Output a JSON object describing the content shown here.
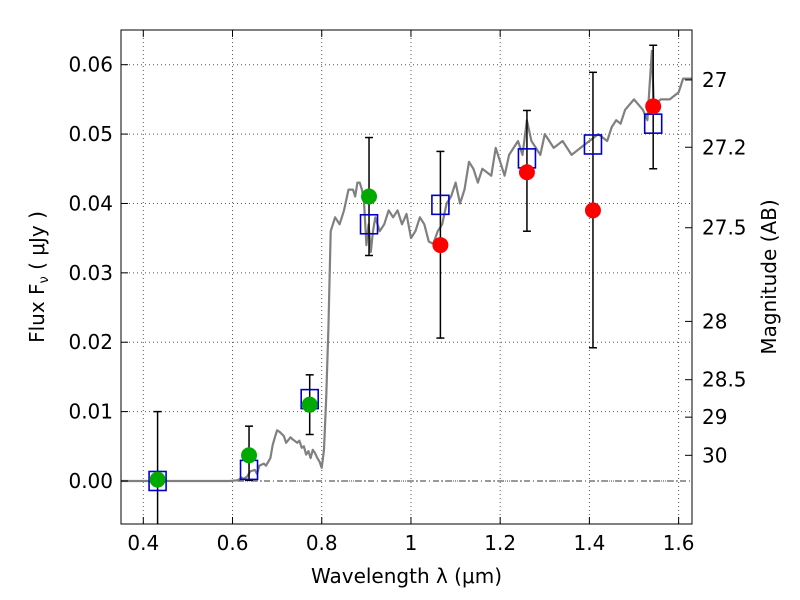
{
  "chart_data": {
    "type": "scatter",
    "xlabel": "Wavelength  λ (μm)",
    "ylabel": "Flux  F",
    "ylabel_sub": "ν",
    "ylabel_unit": " ( μJy )",
    "ylabel_right": "Magnitude (AB)",
    "xlim": [
      0.35,
      1.63
    ],
    "ylim": [
      -0.0062,
      0.065
    ],
    "grid": true,
    "x_ticks": [
      {
        "v": 0.4,
        "label": "0.4"
      },
      {
        "v": 0.6,
        "label": "0.6"
      },
      {
        "v": 0.8,
        "label": "0.8"
      },
      {
        "v": 1.0,
        "label": "1"
      },
      {
        "v": 1.2,
        "label": "1.2"
      },
      {
        "v": 1.4,
        "label": "1.4"
      },
      {
        "v": 1.6,
        "label": "1.6"
      }
    ],
    "y_ticks": [
      {
        "v": 0.0,
        "label": "0.00"
      },
      {
        "v": 0.01,
        "label": "0.01"
      },
      {
        "v": 0.02,
        "label": "0.02"
      },
      {
        "v": 0.03,
        "label": "0.03"
      },
      {
        "v": 0.04,
        "label": "0.04"
      },
      {
        "v": 0.05,
        "label": "0.05"
      },
      {
        "v": 0.06,
        "label": "0.06"
      }
    ],
    "right_ticks": [
      {
        "label": "27",
        "flux": 0.0578
      },
      {
        "label": "27.2",
        "flux": 0.0481
      },
      {
        "label": "27.5",
        "flux": 0.0365
      },
      {
        "label": "28",
        "flux": 0.023
      },
      {
        "label": "28.5",
        "flux": 0.0146
      },
      {
        "label": "29",
        "flux": 0.0092
      },
      {
        "label": "30",
        "flux": 0.0037
      }
    ],
    "colors": {
      "model": "#808080",
      "green": "#00aa00",
      "red": "#ff0000",
      "box": "#0000cc",
      "errorbar": "#000000",
      "grid": "#555555"
    },
    "series": [
      {
        "kind": "line",
        "x": [
          0.35,
          0.45,
          0.55,
          0.595,
          0.61,
          0.615,
          0.62,
          0.625,
          0.632,
          0.64,
          0.65,
          0.655,
          0.66,
          0.67,
          0.675,
          0.685,
          0.69,
          0.695,
          0.7,
          0.705,
          0.715,
          0.72,
          0.73,
          0.735,
          0.745,
          0.75,
          0.755,
          0.76,
          0.765,
          0.77,
          0.775,
          0.78,
          0.785,
          0.79,
          0.795,
          0.8,
          0.805,
          0.81,
          0.815,
          0.82,
          0.83,
          0.84,
          0.85,
          0.86,
          0.87,
          0.875,
          0.88,
          0.885,
          0.89,
          0.895,
          0.9,
          0.905,
          0.91,
          0.915,
          0.92,
          0.925,
          0.93,
          0.94,
          0.95,
          0.96,
          0.97,
          0.98,
          0.99,
          1.0,
          1.01,
          1.02,
          1.03,
          1.04,
          1.05,
          1.06,
          1.07,
          1.08,
          1.09,
          1.1,
          1.11,
          1.12,
          1.13,
          1.14,
          1.15,
          1.16,
          1.18,
          1.19,
          1.2,
          1.21,
          1.22,
          1.23,
          1.24,
          1.25,
          1.26,
          1.27,
          1.28,
          1.29,
          1.3,
          1.31,
          1.32,
          1.34,
          1.36,
          1.38,
          1.4,
          1.42,
          1.44,
          1.45,
          1.46,
          1.47,
          1.48,
          1.5,
          1.52,
          1.53,
          1.535,
          1.54,
          1.545,
          1.55,
          1.56,
          1.58,
          1.6,
          1.61,
          1.62,
          1.63
        ],
        "y": [
          0.0,
          0.0,
          0.0,
          0.0,
          0.0001,
          0.0002,
          0.0005,
          0.0003,
          0.0006,
          0.0014,
          0.0016,
          0.001,
          0.0022,
          0.0025,
          0.0022,
          0.0033,
          0.0052,
          0.0063,
          0.0073,
          0.0071,
          0.0065,
          0.0055,
          0.0063,
          0.006,
          0.0055,
          0.0058,
          0.0048,
          0.005,
          0.0038,
          0.0043,
          0.0033,
          0.0045,
          0.004,
          0.0033,
          0.0028,
          0.0019,
          0.0045,
          0.012,
          0.022,
          0.036,
          0.038,
          0.037,
          0.039,
          0.042,
          0.042,
          0.041,
          0.043,
          0.043,
          0.042,
          0.04,
          0.034,
          0.037,
          0.033,
          0.036,
          0.038,
          0.037,
          0.036,
          0.037,
          0.039,
          0.038,
          0.039,
          0.037,
          0.0385,
          0.035,
          0.036,
          0.038,
          0.037,
          0.0345,
          0.0342,
          0.036,
          0.037,
          0.04,
          0.041,
          0.043,
          0.04,
          0.042,
          0.046,
          0.045,
          0.043,
          0.045,
          0.044,
          0.048,
          0.046,
          0.044,
          0.047,
          0.048,
          0.049,
          0.047,
          0.052,
          0.049,
          0.048,
          0.047,
          0.05,
          0.049,
          0.048,
          0.049,
          0.047,
          0.048,
          0.049,
          0.05,
          0.049,
          0.051,
          0.052,
          0.0515,
          0.0535,
          0.055,
          0.0535,
          0.052,
          0.057,
          0.062,
          0.053,
          0.0545,
          0.055,
          0.055,
          0.056,
          0.058,
          0.058,
          0.058
        ]
      },
      {
        "kind": "points",
        "name": "green",
        "x": [
          0.432,
          0.637,
          0.773,
          0.906
        ],
        "y": [
          0.0002,
          0.0037,
          0.011,
          0.041
        ],
        "err_low": [
          0.0068,
          0.0036,
          0.0043,
          0.0085
        ],
        "err_high": [
          0.0098,
          0.0042,
          0.0043,
          0.0085
        ]
      },
      {
        "kind": "points",
        "name": "red",
        "x": [
          1.066,
          1.26,
          1.408,
          1.543
        ],
        "y": [
          0.034,
          0.0445,
          0.039,
          0.054
        ],
        "err_low": [
          0.0134,
          0.0085,
          0.0198,
          0.009
        ],
        "err_high": [
          0.0135,
          0.0089,
          0.0199,
          0.0088
        ]
      },
      {
        "kind": "boxes",
        "x": [
          0.432,
          0.637,
          0.773,
          0.906,
          1.066,
          1.26,
          1.408,
          1.543
        ],
        "y": [
          0.0,
          0.0016,
          0.0118,
          0.037,
          0.0398,
          0.0465,
          0.0485,
          0.0515
        ]
      }
    ]
  }
}
